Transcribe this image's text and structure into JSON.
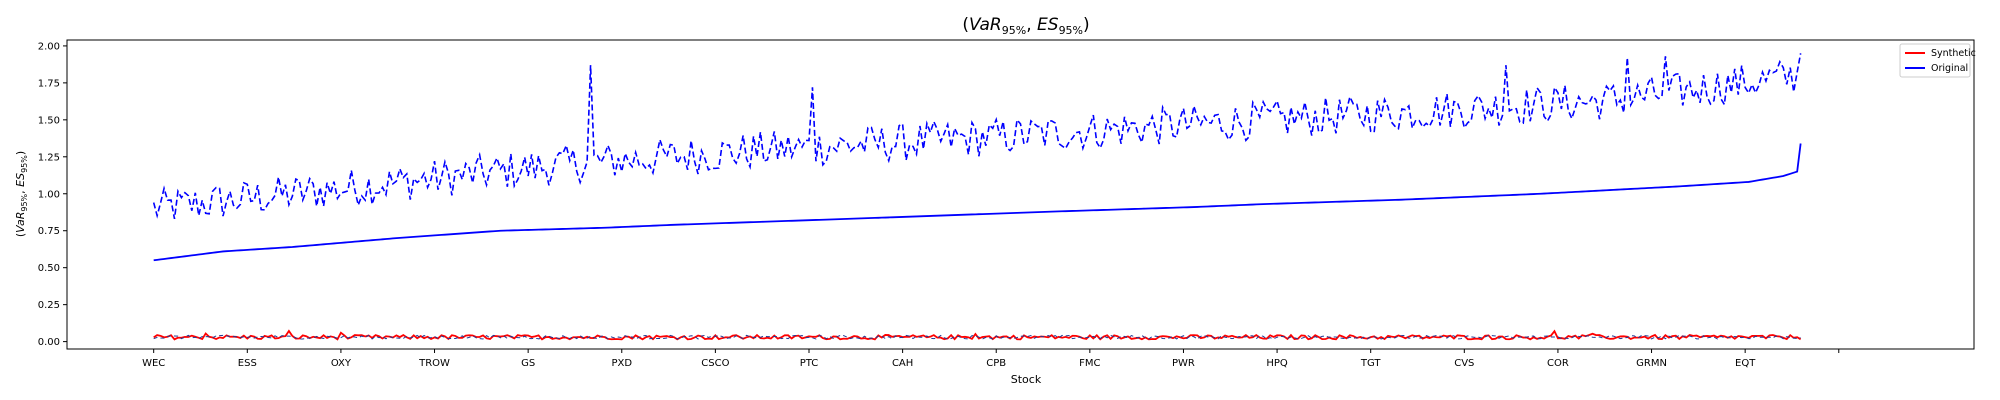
{
  "chart_data": {
    "type": "line",
    "title": "(VaR95%, ES95%)",
    "title_parts": {
      "open": "(",
      "var": "VaR",
      "var_sub": "95%",
      "sep": ", ",
      "es": "ES",
      "es_sub": "95%",
      "close": ")"
    },
    "xlabel": "Stock",
    "ylabel": "(VaR95%, ES95%)",
    "ylabel_parts": {
      "open": "(",
      "var": "VaR",
      "var_sub": "95%",
      "sep": ", ",
      "es": "ES",
      "es_sub": "95%",
      "close": ")"
    },
    "ylim": [
      -0.05,
      2.04
    ],
    "yticks": [
      0.0,
      0.25,
      0.5,
      0.75,
      1.0,
      1.25,
      1.5,
      1.75,
      2.0
    ],
    "ytick_labels": [
      "0.00",
      "0.25",
      "0.50",
      "0.75",
      "1.00",
      "1.25",
      "1.50",
      "1.75",
      "2.00"
    ],
    "xticks": [
      "WEC",
      "ESS",
      "OXY",
      "TROW",
      "GS",
      "PXD",
      "CSCO",
      "PTC",
      "CAH",
      "CPB",
      "FMC",
      "PWR",
      "HPQ",
      "TGT",
      "CVS",
      "COR",
      "GRMN",
      "EQT"
    ],
    "xtick_index_step": 27,
    "n_stocks": 476,
    "x_index_range": [
      -25,
      525
    ],
    "legend": {
      "placement": "top-right",
      "entries": [
        "Synthetic",
        "Original"
      ]
    },
    "colors": {
      "synthetic": "#ff0000",
      "original": "#0000ff",
      "accent_dark": "#1f3a93"
    },
    "grid": false,
    "series": [
      {
        "name": "Original",
        "measure": "VaR95%",
        "linestyle": "solid",
        "color": "#0000ff",
        "sorted_ascending": true,
        "keypoints_index": [
          0,
          10,
          20,
          40,
          70,
          100,
          130,
          150,
          200,
          260,
          300,
          320,
          360,
          400,
          440,
          460,
          470,
          474,
          475
        ],
        "keypoints_value": [
          0.55,
          0.58,
          0.61,
          0.64,
          0.7,
          0.75,
          0.77,
          0.79,
          0.83,
          0.88,
          0.91,
          0.93,
          0.96,
          1.0,
          1.05,
          1.08,
          1.12,
          1.15,
          1.34
        ]
      },
      {
        "name": "Original",
        "measure": "ES95%",
        "linestyle": "dashed",
        "color": "#0000ff",
        "trend_keypoints_index": [
          0,
          60,
          120,
          180,
          240,
          300,
          360,
          420,
          475
        ],
        "trend_keypoints_value": [
          0.9,
          1.05,
          1.2,
          1.3,
          1.38,
          1.47,
          1.55,
          1.63,
          1.8
        ],
        "spikes": [
          {
            "index": 126,
            "value": 1.87
          },
          {
            "index": 190,
            "value": 1.72
          },
          {
            "index": 390,
            "value": 1.87
          },
          {
            "index": 425,
            "value": 1.92
          },
          {
            "index": 436,
            "value": 1.93
          },
          {
            "index": 475,
            "value": 1.95
          }
        ]
      },
      {
        "name": "Synthetic",
        "measure": "VaR95% / ES95%",
        "linestyle": "solid",
        "color": "#ff0000",
        "mean_value": 0.03,
        "range": [
          0.01,
          0.08
        ]
      },
      {
        "name": "Original",
        "measure": "VaR95% / ES95% (near zero)",
        "linestyle": "dashed",
        "color": "#1f3a93",
        "mean_value": 0.03,
        "range": [
          0.01,
          0.07
        ]
      }
    ]
  }
}
